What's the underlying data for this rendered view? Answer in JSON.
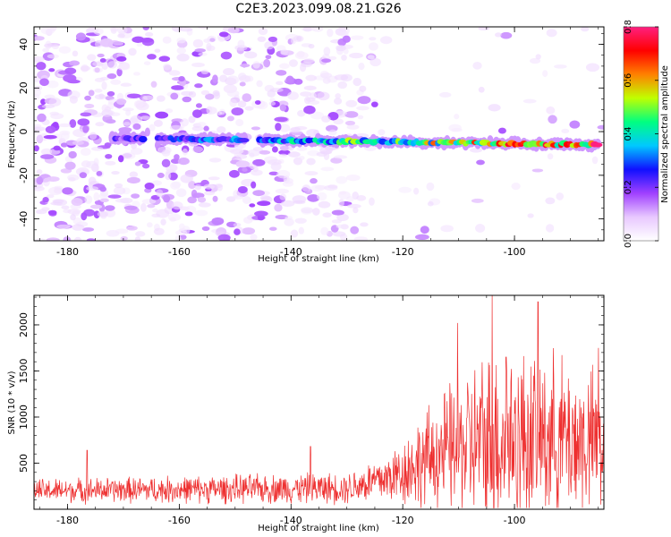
{
  "title": "C2E3.2023.099.08.21.G26",
  "chart_data": [
    {
      "type": "heatmap",
      "xlabel": "Height of straight line (km)",
      "ylabel": "Frequency (Hz)",
      "xlim": [
        -186,
        -84
      ],
      "ylim": [
        -50,
        48
      ],
      "x_ticks": [
        -180,
        -160,
        -140,
        -120,
        -100
      ],
      "y_ticks": [
        -40,
        -20,
        0,
        20,
        40
      ],
      "colorbar": {
        "label": "Normalized spectral amplitude",
        "range": [
          0.0,
          0.8
        ],
        "ticks": [
          0.0,
          0.2,
          0.4,
          0.6,
          0.8
        ],
        "colors": [
          "#ffffff",
          "#e8c8ff",
          "#a040ff",
          "#1010ff",
          "#00c8ff",
          "#00ff80",
          "#c0ff00",
          "#ff8000",
          "#ff0000",
          "#ff2080"
        ]
      },
      "signal_band": {
        "x_start": -172,
        "x_end": -85,
        "center_freq_hz_start": -3,
        "center_freq_hz_end": -6,
        "amplitude_start": 0.2,
        "amplitude_end": 0.75
      }
    },
    {
      "type": "line",
      "xlabel": "Height of straight line (km)",
      "ylabel": "SNR (10 * v/v)",
      "xlim": [
        -186,
        -84
      ],
      "ylim": [
        0,
        2320
      ],
      "x_ticks": [
        -180,
        -160,
        -140,
        -120,
        -100
      ],
      "y_ticks": [
        500,
        1000,
        1500,
        2000
      ],
      "color": "#ee3030",
      "envelope": [
        {
          "x": -186,
          "base": 200,
          "spread": 150
        },
        {
          "x": -130,
          "base": 230,
          "spread": 200
        },
        {
          "x": -122,
          "base": 350,
          "spread": 350
        },
        {
          "x": -112,
          "base": 650,
          "spread": 800
        },
        {
          "x": -104,
          "base": 750,
          "spread": 1200
        },
        {
          "x": -95,
          "base": 800,
          "spread": 1100
        },
        {
          "x": -84,
          "base": 700,
          "spread": 900
        }
      ],
      "peaks": [
        {
          "x": -110.2,
          "y": 2020
        },
        {
          "x": -104.0,
          "y": 2320
        },
        {
          "x": -95.8,
          "y": 2250
        },
        {
          "x": -101.5,
          "y": 1650
        },
        {
          "x": -85.0,
          "y": 1750
        },
        {
          "x": -176.5,
          "y": 640
        },
        {
          "x": -136.5,
          "y": 680
        }
      ]
    }
  ]
}
